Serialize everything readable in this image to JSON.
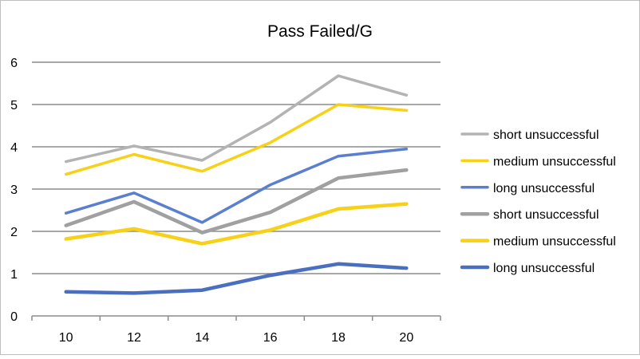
{
  "chart_data": {
    "type": "line",
    "title": "Pass Failed/G",
    "xlabel": "",
    "ylabel": "",
    "categories": [
      "10",
      "12",
      "14",
      "16",
      "18",
      "20"
    ],
    "ylim": [
      0,
      6
    ],
    "yticks": [
      "0",
      "1",
      "2",
      "3",
      "4",
      "5",
      "6"
    ],
    "grid": true,
    "legend_position": "right",
    "series": [
      {
        "name": "short unsuccessful",
        "color": "#b3b3b3",
        "weight": "thin",
        "values": [
          3.65,
          4.02,
          3.68,
          4.58,
          5.68,
          5.22
        ]
      },
      {
        "name": "medium unsuccessful",
        "color": "#f7d117",
        "weight": "thin",
        "values": [
          3.35,
          3.82,
          3.42,
          4.1,
          5.0,
          4.86
        ]
      },
      {
        "name": "long unsuccessful",
        "color": "#5b7fd0",
        "weight": "thin",
        "values": [
          2.43,
          2.91,
          2.21,
          3.1,
          3.78,
          3.95
        ]
      },
      {
        "name": "short unsuccessful",
        "color": "#a0a0a0",
        "weight": "thick",
        "values": [
          2.14,
          2.7,
          1.97,
          2.45,
          3.26,
          3.45
        ]
      },
      {
        "name": "medium unsuccessful",
        "color": "#f7d117",
        "weight": "thick",
        "values": [
          1.82,
          2.06,
          1.71,
          2.03,
          2.53,
          2.65
        ]
      },
      {
        "name": "long unsuccessful",
        "color": "#4a6fc0",
        "weight": "thick",
        "values": [
          0.57,
          0.54,
          0.61,
          0.96,
          1.23,
          1.13
        ]
      }
    ]
  }
}
